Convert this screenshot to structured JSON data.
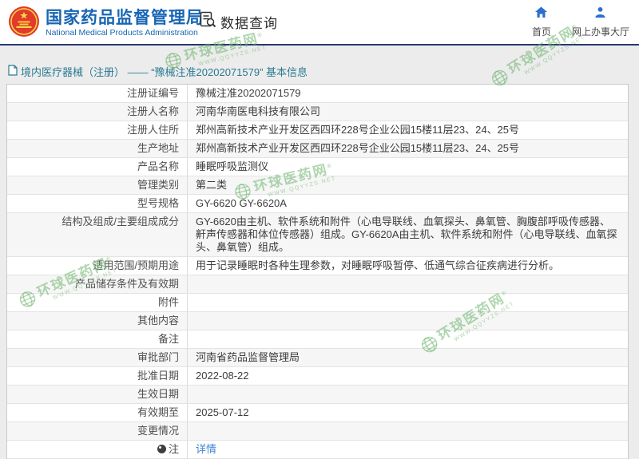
{
  "header": {
    "title": "国家药品监督管理局",
    "subtitle": "National Medical Products Administration",
    "section_label": "数据查询",
    "nav": [
      {
        "label": "首页",
        "icon": "home-icon"
      },
      {
        "label": "网上办事大厅",
        "icon": "person-icon"
      }
    ]
  },
  "breadcrumb": {
    "text": "境内医疗器械（注册） —— “豫械注准20202071579” 基本信息"
  },
  "table": {
    "rows": [
      {
        "label": "注册证编号",
        "value": "豫械注准20202071579"
      },
      {
        "label": "注册人名称",
        "value": "河南华南医电科技有限公司"
      },
      {
        "label": "注册人住所",
        "value": "郑州高新技术产业开发区西四环228号企业公园15楼11层23、24、25号"
      },
      {
        "label": "生产地址",
        "value": "郑州高新技术产业开发区西四环228号企业公园15楼11层23、24、25号"
      },
      {
        "label": "产品名称",
        "value": "睡眠呼吸监测仪"
      },
      {
        "label": "管理类别",
        "value": "第二类"
      },
      {
        "label": "型号规格",
        "value": "GY-6620 GY-6620A"
      },
      {
        "label": "结构及组成/主要组成成分",
        "value": "GY-6620由主机、软件系统和附件（心电导联线、血氧探头、鼻氧管、胸腹部呼吸传感器、鼾声传感器和体位传感器）组成。GY-6620A由主机、软件系统和附件（心电导联线、血氧探头、鼻氧管）组成。"
      },
      {
        "label": "适用范围/预期用途",
        "value": "用于记录睡眠时各种生理参数，对睡眠呼吸暂停、低通气综合征疾病进行分析。"
      },
      {
        "label": "产品储存条件及有效期",
        "value": ""
      },
      {
        "label": "附件",
        "value": ""
      },
      {
        "label": "其他内容",
        "value": ""
      },
      {
        "label": "备注",
        "value": ""
      },
      {
        "label": "审批部门",
        "value": "河南省药品监督管理局"
      },
      {
        "label": "批准日期",
        "value": "2022-08-22"
      },
      {
        "label": "生效日期",
        "value": ""
      },
      {
        "label": "有效期至",
        "value": "2025-07-12"
      },
      {
        "label": "变更情况",
        "value": ""
      },
      {
        "label": "注",
        "value": "详情",
        "link": true,
        "label_icon": "comment-icon"
      }
    ]
  },
  "watermark": {
    "name": "环球医药网",
    "reg": "®",
    "url": "WWW.QQYYZS.NET"
  },
  "colors": {
    "header_blue": "#1866b4",
    "divider_navy": "#26386e",
    "breadcrumb_teal": "#2a7a93",
    "link_blue": "#4285d3",
    "watermark_green": "#6eb46e",
    "row_alt_bg": "#f6f6f6"
  }
}
